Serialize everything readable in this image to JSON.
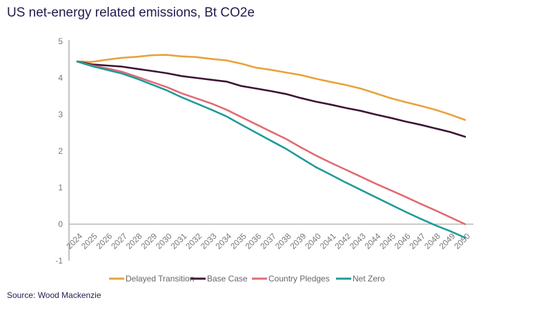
{
  "chart_data": {
    "type": "line",
    "title": "US net-energy related emissions, Bt CO2e",
    "xlabel": "",
    "ylabel": "",
    "ylim": [
      -1,
      5
    ],
    "yticks": [
      -1,
      0,
      1,
      2,
      3,
      4,
      5
    ],
    "grid": false,
    "legend_position": "bottom",
    "x": [
      2024,
      2025,
      2026,
      2027,
      2028,
      2029,
      2030,
      2031,
      2032,
      2033,
      2034,
      2035,
      2036,
      2037,
      2038,
      2039,
      2040,
      2041,
      2042,
      2043,
      2044,
      2045,
      2046,
      2047,
      2048,
      2049,
      2050
    ],
    "series": [
      {
        "name": "Delayed Transition",
        "color": "#e8a23a",
        "values": [
          4.45,
          4.44,
          4.5,
          4.55,
          4.58,
          4.62,
          4.63,
          4.59,
          4.57,
          4.52,
          4.48,
          4.39,
          4.28,
          4.22,
          4.15,
          4.08,
          3.98,
          3.89,
          3.81,
          3.71,
          3.58,
          3.45,
          3.34,
          3.24,
          3.13,
          3.0,
          2.85
        ]
      },
      {
        "name": "Base Case",
        "color": "#3d1434",
        "values": [
          4.45,
          4.37,
          4.34,
          4.31,
          4.25,
          4.19,
          4.13,
          4.05,
          4.0,
          3.95,
          3.9,
          3.78,
          3.71,
          3.64,
          3.56,
          3.45,
          3.35,
          3.27,
          3.18,
          3.1,
          3.0,
          2.91,
          2.81,
          2.72,
          2.62,
          2.52,
          2.39
        ]
      },
      {
        "name": "Country Pledges",
        "color": "#e06a72",
        "values": [
          4.45,
          4.34,
          4.26,
          4.17,
          4.03,
          3.89,
          3.75,
          3.58,
          3.44,
          3.3,
          3.13,
          2.93,
          2.73,
          2.53,
          2.33,
          2.1,
          1.88,
          1.68,
          1.49,
          1.3,
          1.11,
          0.93,
          0.75,
          0.56,
          0.38,
          0.19,
          0.0
        ]
      },
      {
        "name": "Net Zero",
        "color": "#1f9a98",
        "values": [
          4.45,
          4.32,
          4.22,
          4.12,
          3.98,
          3.82,
          3.66,
          3.47,
          3.3,
          3.13,
          2.95,
          2.72,
          2.5,
          2.28,
          2.06,
          1.81,
          1.56,
          1.35,
          1.14,
          0.94,
          0.74,
          0.54,
          0.34,
          0.15,
          -0.03,
          -0.19,
          -0.37
        ]
      }
    ]
  },
  "source": "Source: Wood Mackenzie"
}
